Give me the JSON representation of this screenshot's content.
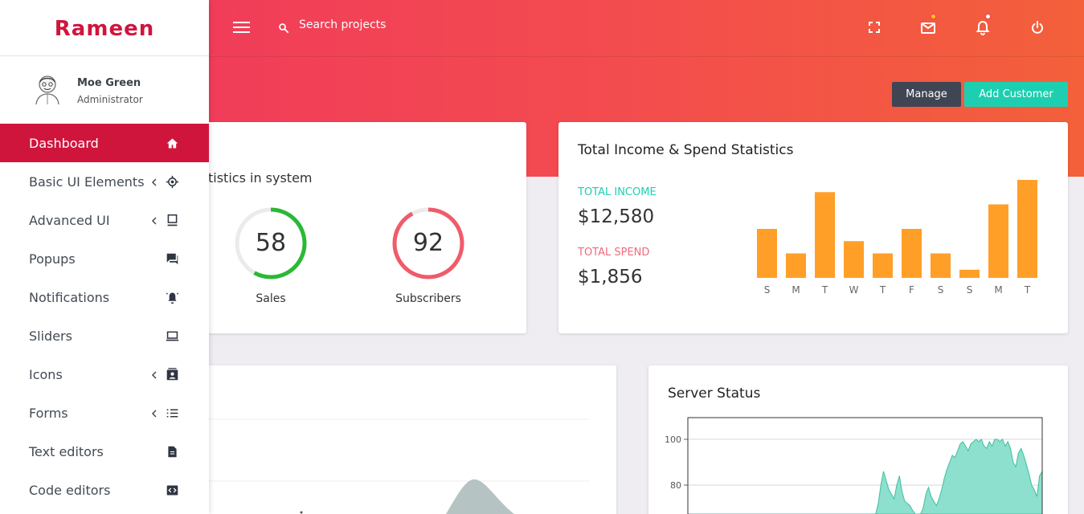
{
  "brand": "Rameen",
  "user": {
    "name": "Moe Green",
    "role": "Administrator"
  },
  "search": {
    "placeholder": "Search projects"
  },
  "menu": [
    {
      "label": "Dashboard",
      "icon": "home-icon",
      "active": true
    },
    {
      "label": "Basic UI Elements",
      "icon": "target-icon"
    },
    {
      "label": "Advanced UI",
      "icon": "desktop-icon"
    },
    {
      "label": "Popups",
      "icon": "chat-icon"
    },
    {
      "label": "Notifications",
      "icon": "bell-ring-icon"
    },
    {
      "label": "Sliders",
      "icon": "laptop-icon"
    },
    {
      "label": "Icons",
      "icon": "contact-card-icon"
    },
    {
      "label": "Forms",
      "icon": "list-icon"
    },
    {
      "label": "Text editors",
      "icon": "document-icon"
    },
    {
      "label": "Code editors",
      "icon": "code-icon"
    }
  ],
  "buttons": {
    "manage": "Manage",
    "add_customer": "Add Customer"
  },
  "stats_card": {
    "subtitle": "tistics in system",
    "metrics": [
      {
        "value": "58",
        "label": "Sales",
        "percent": 58,
        "color": "#2ab934"
      },
      {
        "value": "92",
        "label": "Subscribers",
        "percent": 92,
        "color": "#f05b6a"
      }
    ]
  },
  "income_card": {
    "title": "Total Income & Spend Statistics",
    "income_label": "TOTAL INCOME",
    "income_value": "$12,580",
    "spend_label": "TOTAL SPEND",
    "spend_value": "$1,856",
    "colors": {
      "income": "#1dcfb0",
      "spend": "#f06a7d",
      "bar": "#ff9f28"
    }
  },
  "server_card": {
    "title": "Server Status"
  },
  "chart_data": [
    {
      "type": "bar",
      "categories": [
        "S",
        "M",
        "T",
        "W",
        "T",
        "F",
        "S",
        "S",
        "M",
        "T"
      ],
      "values": [
        6,
        3,
        10.5,
        4.5,
        3,
        6,
        3,
        1,
        9,
        12
      ]
    },
    {
      "type": "area",
      "yticks": [
        100,
        80
      ],
      "ylim": [
        60,
        105
      ],
      "values": [
        60,
        60,
        60,
        60,
        60,
        60,
        60,
        60,
        60,
        60,
        60,
        60,
        60,
        60,
        60,
        60,
        60,
        60,
        60,
        60,
        60,
        60,
        60,
        60,
        60,
        60,
        60,
        60,
        60,
        60,
        60,
        60,
        60,
        60,
        60,
        60,
        60,
        60,
        60,
        60,
        60,
        60,
        60,
        60,
        60,
        60,
        60,
        60,
        60,
        60,
        60,
        60,
        60,
        60,
        60,
        60,
        60,
        60,
        60,
        60,
        60,
        60,
        60,
        60,
        60,
        60,
        60,
        60,
        60,
        60,
        60,
        60,
        72,
        80,
        86,
        82,
        78,
        76,
        74,
        80,
        84,
        77,
        73,
        72,
        71,
        69,
        66,
        64,
        62,
        70,
        76,
        79,
        75,
        73,
        71,
        74,
        78,
        83,
        87,
        90,
        93,
        92,
        95,
        98,
        99,
        97,
        95,
        98,
        99,
        100,
        99,
        100,
        97,
        96,
        99,
        97,
        100,
        100,
        99,
        100,
        97,
        99,
        96,
        90,
        88,
        94,
        96,
        93,
        89,
        85,
        80,
        78,
        75,
        84,
        86
      ]
    }
  ]
}
